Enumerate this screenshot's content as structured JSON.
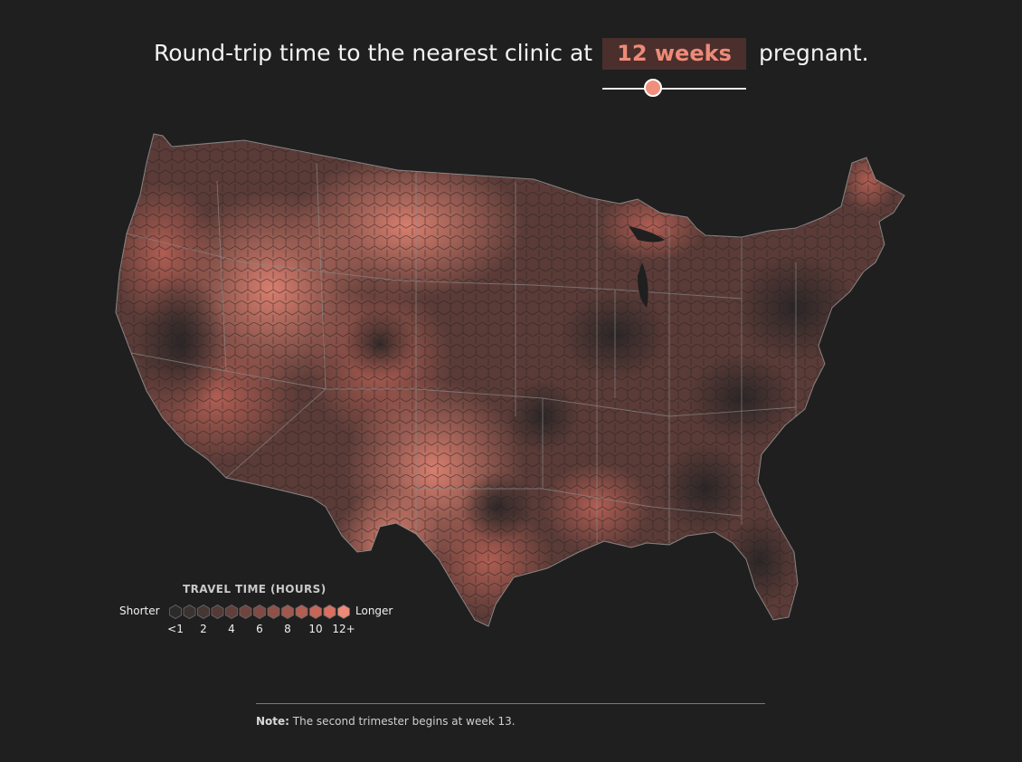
{
  "headline": {
    "lead": "Round-trip time to the nearest clinic at",
    "weeks_value": "12 weeks",
    "trail": "pregnant."
  },
  "slider": {
    "value_weeks": 12,
    "position_fraction": 0.33
  },
  "legend": {
    "title": "TRAVEL TIME (HOURS)",
    "low_label": "Shorter",
    "high_label": "Longer",
    "ticks": [
      "<1",
      "2",
      "4",
      "6",
      "8",
      "10",
      "12+"
    ],
    "colors": [
      "#2c2a2a",
      "#3a3231",
      "#463634",
      "#533a37",
      "#613f3b",
      "#70443f",
      "#7f4a44",
      "#8f5048",
      "#a0574d",
      "#b25e53",
      "#c56659",
      "#da6f61",
      "#ee8a78"
    ]
  },
  "map": {
    "region": "Contiguous United States",
    "base_color": "#2c2a2a",
    "accent_color": "#ee8a78",
    "border_color": "#8a8a8a"
  },
  "note": {
    "label": "Note:",
    "text": "The second trimester begins at week 13."
  }
}
